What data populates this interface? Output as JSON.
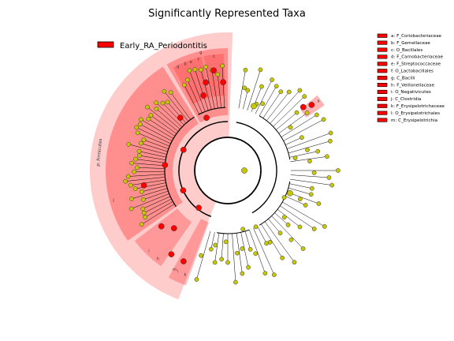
{
  "chart_data": {
    "type": "cladogram",
    "title": "Significantly Represented Taxa",
    "group_legend": [
      {
        "name": "Early_RA_Periodontitis",
        "color": "#ff0000"
      }
    ],
    "colors": {
      "enriched_node": "#ff0000",
      "neutral_node": "#c8c800",
      "clade_fill": "#ff0000",
      "phylum_fill": "#ff9999",
      "edge": "#000000"
    },
    "taxa_legend": [
      {
        "key": "a",
        "label": "a: F_Coriobacteriaceae"
      },
      {
        "key": "b",
        "label": "b: F_Gemellaceae"
      },
      {
        "key": "c",
        "label": "c: O_Bacillales"
      },
      {
        "key": "d",
        "label": "d: F_Carnobacteriaceae"
      },
      {
        "key": "e",
        "label": "e: F_Streptococcaceae"
      },
      {
        "key": "f",
        "label": "f: O_Lactobacillales"
      },
      {
        "key": "g",
        "label": "g: C_Bacilli"
      },
      {
        "key": "h",
        "label": "h: F_Veillonellaceae"
      },
      {
        "key": "i",
        "label": "i: O_Negativicutes"
      },
      {
        "key": "j",
        "label": "j: C_Clostridia"
      },
      {
        "key": "k",
        "label": "k: F_Erysipelotrichaceae"
      },
      {
        "key": "l",
        "label": "l: O_Erysipelotrichales"
      },
      {
        "key": "m",
        "label": "m: C_Erysipelotrichia"
      }
    ],
    "phylum_label": "p: Firmicutes",
    "clade_letters": [
      "a",
      "b",
      "c",
      "d",
      "e",
      "f",
      "g",
      "h",
      "i",
      "j",
      "k",
      "l",
      "m"
    ]
  }
}
